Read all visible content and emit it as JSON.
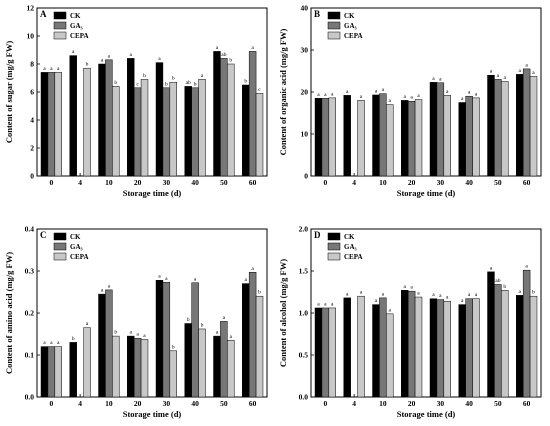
{
  "chart_data": [
    {
      "type": "bar",
      "panel": "A",
      "xlabel": "Storage time (d)",
      "ylabel": "Content of sugar (mg/g FW)",
      "categories": [
        "0",
        "4",
        "10",
        "20",
        "30",
        "40",
        "50",
        "60"
      ],
      "ylim": [
        0,
        12
      ],
      "yticks": [
        "0",
        "2",
        "4",
        "6",
        "8",
        "10",
        "12"
      ],
      "legend_position": "top-left",
      "series": [
        {
          "name": "CK",
          "color": "#000000",
          "values": [
            7.4,
            8.6,
            8.0,
            8.4,
            8.1,
            6.4,
            8.9,
            6.5
          ],
          "labels": [
            "a",
            "a",
            "a",
            "a",
            "a",
            "ab",
            "a",
            "b"
          ]
        },
        {
          "name": "GA₃",
          "color": "#777777",
          "values": [
            7.4,
            null,
            8.3,
            6.3,
            6.3,
            6.3,
            8.4,
            8.9
          ],
          "labels": [
            "a",
            "",
            "a",
            "c",
            "b",
            "b",
            "ab",
            "a"
          ]
        },
        {
          "name": "CEPA",
          "color": "#c8c8c8",
          "values": [
            7.4,
            7.7,
            6.4,
            6.9,
            6.7,
            6.9,
            8.0,
            5.9
          ],
          "labels": [
            "a",
            "b",
            "b",
            "b",
            "b",
            "a",
            "b",
            "c"
          ]
        }
      ]
    },
    {
      "type": "bar",
      "panel": "B",
      "xlabel": "Storage time (d)",
      "ylabel": "Content of organic acid (mg/g FW)",
      "categories": [
        "0",
        "4",
        "10",
        "20",
        "30",
        "40",
        "50",
        "60"
      ],
      "ylim": [
        0,
        40
      ],
      "yticks": [
        "0",
        "10",
        "20",
        "30",
        "40"
      ],
      "legend_position": "top-left",
      "series": [
        {
          "name": "CK",
          "color": "#000000",
          "values": [
            18.5,
            19.2,
            19.3,
            18.0,
            22.3,
            17.5,
            24.0,
            24.2
          ],
          "labels": [
            "a",
            "a",
            "a",
            "a",
            "a",
            "a",
            "a",
            "a"
          ]
        },
        {
          "name": "GA₃",
          "color": "#777777",
          "values": [
            18.5,
            null,
            19.6,
            17.8,
            22.2,
            19.0,
            23.0,
            25.5
          ],
          "labels": [
            "a",
            "",
            "a",
            "a",
            "a",
            "a",
            "a",
            "a"
          ]
        },
        {
          "name": "CEPA",
          "color": "#c8c8c8",
          "values": [
            18.6,
            18.0,
            17.0,
            18.2,
            19.2,
            18.6,
            22.5,
            23.7
          ],
          "labels": [
            "a",
            "a",
            "a",
            "a",
            "a",
            "a",
            "a",
            "a"
          ]
        }
      ]
    },
    {
      "type": "bar",
      "panel": "C",
      "xlabel": "Storage time (d)",
      "ylabel": "Content of amino acid (mg/g FW)",
      "categories": [
        "0",
        "4",
        "10",
        "20",
        "30",
        "40",
        "50",
        "60"
      ],
      "ylim": [
        0,
        0.4
      ],
      "yticks": [
        "0.0",
        "0.1",
        "0.2",
        "0.3",
        "0.4"
      ],
      "legend_position": "top-left",
      "series": [
        {
          "name": "CK",
          "color": "#000000",
          "values": [
            0.12,
            0.13,
            0.245,
            0.145,
            0.278,
            0.175,
            0.145,
            0.27
          ],
          "labels": [
            "a",
            "b",
            "a",
            "a",
            "a",
            "b",
            "a",
            "a"
          ]
        },
        {
          "name": "GA₃",
          "color": "#777777",
          "values": [
            0.12,
            null,
            0.255,
            0.14,
            0.273,
            0.272,
            0.18,
            0.297
          ],
          "labels": [
            "a",
            "",
            "a",
            "a",
            "a",
            "a",
            "a",
            "a"
          ]
        },
        {
          "name": "CEPA",
          "color": "#c8c8c8",
          "values": [
            0.12,
            0.165,
            0.145,
            0.137,
            0.11,
            0.162,
            0.135,
            0.24
          ],
          "labels": [
            "a",
            "a",
            "b",
            "a",
            "b",
            "b",
            "a",
            "b"
          ]
        }
      ]
    },
    {
      "type": "bar",
      "panel": "D",
      "xlabel": "Storage time (d)",
      "ylabel": "Content of alcohol (mg/g FW)",
      "categories": [
        "0",
        "4",
        "10",
        "20",
        "30",
        "40",
        "50",
        "60"
      ],
      "ylim": [
        0,
        2.0
      ],
      "yticks": [
        "0.0",
        "0.5",
        "1.0",
        "1.5",
        "2.0"
      ],
      "legend_position": "top-left",
      "series": [
        {
          "name": "CK",
          "color": "#000000",
          "values": [
            1.06,
            1.18,
            1.1,
            1.27,
            1.17,
            1.1,
            1.49,
            1.21
          ],
          "labels": [
            "a",
            "a",
            "a",
            "a",
            "a",
            "a",
            "a",
            "a"
          ]
        },
        {
          "name": "GA₃",
          "color": "#777777",
          "values": [
            1.06,
            null,
            1.18,
            1.26,
            1.16,
            1.17,
            1.34,
            1.51
          ],
          "labels": [
            "a",
            "",
            "a",
            "a",
            "a",
            "a",
            "ab",
            "a"
          ]
        },
        {
          "name": "CEPA",
          "color": "#c8c8c8",
          "values": [
            1.06,
            1.2,
            0.99,
            1.19,
            1.14,
            1.17,
            1.27,
            1.2
          ],
          "labels": [
            "a",
            "a",
            "a",
            "a",
            "a",
            "a",
            "b",
            "b"
          ]
        }
      ]
    }
  ]
}
